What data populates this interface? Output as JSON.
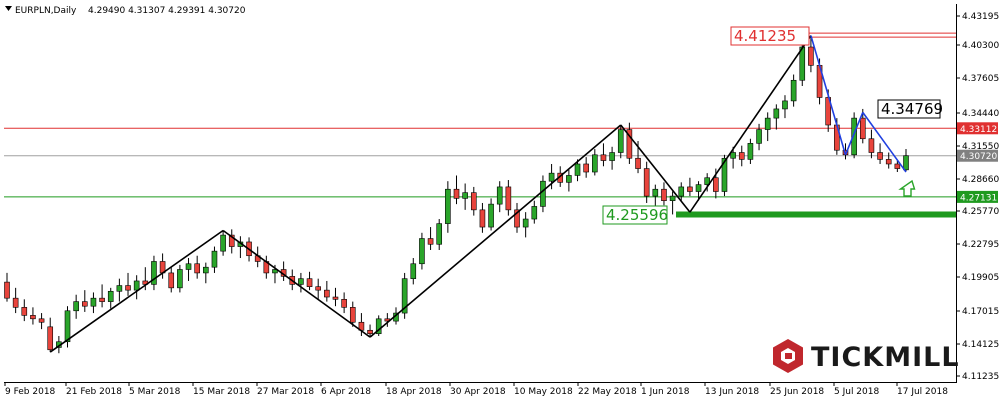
{
  "header": {
    "symbol": "EURPLN,Daily",
    "ohlc": "4.29490 4.31307 4.29391 4.30720"
  },
  "brand": {
    "name": "TICKMILL"
  },
  "colors": {
    "up": "#2aa52a",
    "down": "#e8443c",
    "wick": "#000000",
    "resistance": "#e03030",
    "support": "#1f9a1f",
    "current": "#a0a0a0",
    "zigzag": "#000000",
    "zigzag_recent": "#2040e0",
    "brand_red": "#c0272d"
  },
  "chart_data": {
    "type": "candlestick",
    "symbol": "EURPLN",
    "timeframe": "Daily",
    "last": {
      "open": 4.2949,
      "high": 4.31307,
      "low": 4.29391,
      "close": 4.3072
    },
    "ylim": [
      4.1099,
      4.4395
    ],
    "y_ticks": [
      "4.43195",
      "4.40300",
      "4.37605",
      "4.34440",
      "4.31550",
      "4.28660",
      "4.25770",
      "4.22795",
      "4.19905",
      "4.17015",
      "4.14125",
      "4.11235"
    ],
    "x_ticks": [
      "9 Feb 2018",
      "21 Feb 2018",
      "5 Mar 2018",
      "15 Mar 2018",
      "27 Mar 2018",
      "6 Apr 2018",
      "18 Apr 2018",
      "30 Apr 2018",
      "10 May 2018",
      "22 May 2018",
      "1 Jun 2018",
      "13 Jun 2018",
      "25 Jun 2018",
      "5 Jul 2018",
      "17 Jul 2018"
    ],
    "candles": [
      [
        4.197,
        4.205,
        4.18,
        4.183
      ],
      [
        4.183,
        4.192,
        4.17,
        4.175
      ],
      [
        4.175,
        4.182,
        4.163,
        4.168
      ],
      [
        4.168,
        4.175,
        4.16,
        4.165
      ],
      [
        4.165,
        4.17,
        4.156,
        4.162
      ],
      [
        4.158,
        4.166,
        4.136,
        4.138
      ],
      [
        4.14,
        4.15,
        4.135,
        4.145
      ],
      [
        4.145,
        4.176,
        4.14,
        4.172
      ],
      [
        4.172,
        4.186,
        4.165,
        4.18
      ],
      [
        4.18,
        4.19,
        4.171,
        4.176
      ],
      [
        4.176,
        4.188,
        4.17,
        4.183
      ],
      [
        4.183,
        4.195,
        4.175,
        4.18
      ],
      [
        4.18,
        4.192,
        4.174,
        4.189
      ],
      [
        4.189,
        4.2,
        4.18,
        4.194
      ],
      [
        4.194,
        4.205,
        4.185,
        4.19
      ],
      [
        4.19,
        4.203,
        4.182,
        4.198
      ],
      [
        4.198,
        4.21,
        4.19,
        4.195
      ],
      [
        4.195,
        4.22,
        4.19,
        4.215
      ],
      [
        4.215,
        4.222,
        4.2,
        4.205
      ],
      [
        4.205,
        4.21,
        4.188,
        4.192
      ],
      [
        4.192,
        4.212,
        4.188,
        4.208
      ],
      [
        4.208,
        4.218,
        4.198,
        4.213
      ],
      [
        4.213,
        4.22,
        4.2,
        4.205
      ],
      [
        4.205,
        4.214,
        4.196,
        4.21
      ],
      [
        4.21,
        4.228,
        4.205,
        4.224
      ],
      [
        4.224,
        4.242,
        4.22,
        4.238
      ],
      [
        4.238,
        4.243,
        4.222,
        4.228
      ],
      [
        4.228,
        4.237,
        4.218,
        4.232
      ],
      [
        4.232,
        4.236,
        4.215,
        4.22
      ],
      [
        4.22,
        4.228,
        4.21,
        4.215
      ],
      [
        4.215,
        4.22,
        4.2,
        4.205
      ],
      [
        4.205,
        4.212,
        4.196,
        4.208
      ],
      [
        4.208,
        4.215,
        4.198,
        4.202
      ],
      [
        4.202,
        4.208,
        4.19,
        4.195
      ],
      [
        4.195,
        4.205,
        4.188,
        4.2
      ],
      [
        4.2,
        4.206,
        4.19,
        4.193
      ],
      [
        4.193,
        4.2,
        4.182,
        4.19
      ],
      [
        4.19,
        4.198,
        4.18,
        4.184
      ],
      [
        4.184,
        4.192,
        4.176,
        4.182
      ],
      [
        4.182,
        4.188,
        4.17,
        4.175
      ],
      [
        4.175,
        4.18,
        4.158,
        4.162
      ],
      [
        4.162,
        4.17,
        4.15,
        4.155
      ],
      [
        4.155,
        4.16,
        4.149,
        4.152
      ],
      [
        4.152,
        4.168,
        4.15,
        4.165
      ],
      [
        4.165,
        4.17,
        4.158,
        4.163
      ],
      [
        4.163,
        4.175,
        4.16,
        4.17
      ],
      [
        4.17,
        4.205,
        4.165,
        4.2
      ],
      [
        4.2,
        4.218,
        4.195,
        4.213
      ],
      [
        4.213,
        4.24,
        4.208,
        4.235
      ],
      [
        4.235,
        4.245,
        4.225,
        4.23
      ],
      [
        4.23,
        4.252,
        4.225,
        4.248
      ],
      [
        4.248,
        4.285,
        4.24,
        4.278
      ],
      [
        4.278,
        4.29,
        4.265,
        4.27
      ],
      [
        4.27,
        4.283,
        4.26,
        4.275
      ],
      [
        4.275,
        4.28,
        4.255,
        4.26
      ],
      [
        4.26,
        4.266,
        4.24,
        4.245
      ],
      [
        4.245,
        4.27,
        4.242,
        4.265
      ],
      [
        4.265,
        4.285,
        4.258,
        4.28
      ],
      [
        4.28,
        4.286,
        4.255,
        4.26
      ],
      [
        4.26,
        4.266,
        4.24,
        4.245
      ],
      [
        4.245,
        4.258,
        4.236,
        4.252
      ],
      [
        4.252,
        4.268,
        4.248,
        4.263
      ],
      [
        4.263,
        4.29,
        4.258,
        4.285
      ],
      [
        4.285,
        4.3,
        4.278,
        4.292
      ],
      [
        4.292,
        4.298,
        4.28,
        4.284
      ],
      [
        4.284,
        4.295,
        4.276,
        4.29
      ],
      [
        4.29,
        4.304,
        4.285,
        4.3
      ],
      [
        4.3,
        4.306,
        4.288,
        4.293
      ],
      [
        4.293,
        4.313,
        4.29,
        4.308
      ],
      [
        4.308,
        4.318,
        4.298,
        4.303
      ],
      [
        4.303,
        4.315,
        4.295,
        4.31
      ],
      [
        4.31,
        4.334,
        4.305,
        4.33
      ],
      [
        4.33,
        4.336,
        4.3,
        4.305
      ],
      [
        4.305,
        4.32,
        4.292,
        4.296
      ],
      [
        4.296,
        4.302,
        4.266,
        4.272
      ],
      [
        4.272,
        4.282,
        4.262,
        4.278
      ],
      [
        4.278,
        4.284,
        4.264,
        4.268
      ],
      [
        4.268,
        4.276,
        4.256,
        4.272
      ],
      [
        4.272,
        4.284,
        4.268,
        4.28
      ],
      [
        4.28,
        4.288,
        4.272,
        4.276
      ],
      [
        4.276,
        4.285,
        4.268,
        4.282
      ],
      [
        4.282,
        4.292,
        4.276,
        4.288
      ],
      [
        4.288,
        4.296,
        4.27,
        4.276
      ],
      [
        4.276,
        4.308,
        4.272,
        4.305
      ],
      [
        4.305,
        4.315,
        4.296,
        4.31
      ],
      [
        4.31,
        4.316,
        4.298,
        4.304
      ],
      [
        4.304,
        4.322,
        4.3,
        4.318
      ],
      [
        4.318,
        4.335,
        4.312,
        4.33
      ],
      [
        4.33,
        4.345,
        4.32,
        4.34
      ],
      [
        4.34,
        4.352,
        4.33,
        4.348
      ],
      [
        4.348,
        4.36,
        4.34,
        4.355
      ],
      [
        4.355,
        4.378,
        4.35,
        4.373
      ],
      [
        4.373,
        4.41,
        4.368,
        4.402
      ],
      [
        4.402,
        4.412,
        4.38,
        4.386
      ],
      [
        4.386,
        4.392,
        4.352,
        4.358
      ],
      [
        4.358,
        4.365,
        4.328,
        4.334
      ],
      [
        4.334,
        4.34,
        4.308,
        4.312
      ],
      [
        4.312,
        4.318,
        4.304,
        4.308
      ],
      [
        4.308,
        4.345,
        4.305,
        4.34
      ],
      [
        4.34,
        4.348,
        4.318,
        4.322
      ],
      [
        4.322,
        4.33,
        4.305,
        4.31
      ],
      [
        4.31,
        4.318,
        4.3,
        4.304
      ],
      [
        4.304,
        4.31,
        4.296,
        4.3
      ],
      [
        4.3,
        4.303,
        4.293,
        4.296
      ],
      [
        4.2949,
        4.31307,
        4.29391,
        4.3072
      ]
    ],
    "horizontal_levels": [
      {
        "price": 4.41235,
        "label": "4.41235",
        "kind": "resistance"
      },
      {
        "price": 4.33112,
        "label": "4.33112",
        "kind": "resistance"
      },
      {
        "price": 4.3072,
        "label": "4.30720",
        "kind": "current"
      },
      {
        "price": 4.27131,
        "label": "4.27131",
        "kind": "support"
      },
      {
        "price": 4.25596,
        "label": "4.25596",
        "kind": "support_zone"
      }
    ],
    "annotations": [
      {
        "text": "4.41235",
        "kind": "resistance"
      },
      {
        "text": "4.34769",
        "kind": "neutral"
      },
      {
        "text": "4.25596",
        "kind": "support"
      }
    ],
    "zigzag": [
      {
        "bar": 5,
        "price": 4.136
      },
      {
        "bar": 25,
        "price": 4.242
      },
      {
        "bar": 42,
        "price": 4.149
      },
      {
        "bar": 71,
        "price": 4.334
      },
      {
        "bar": 79,
        "price": 4.258
      },
      {
        "bar": 93,
        "price": 4.412,
        "segment": "recent"
      },
      {
        "bar": 97,
        "price": 4.308,
        "segment": "recent"
      },
      {
        "bar": 99,
        "price": 4.345,
        "segment": "recent"
      },
      {
        "bar": 104,
        "price": 4.293,
        "segment": "recent"
      }
    ]
  }
}
